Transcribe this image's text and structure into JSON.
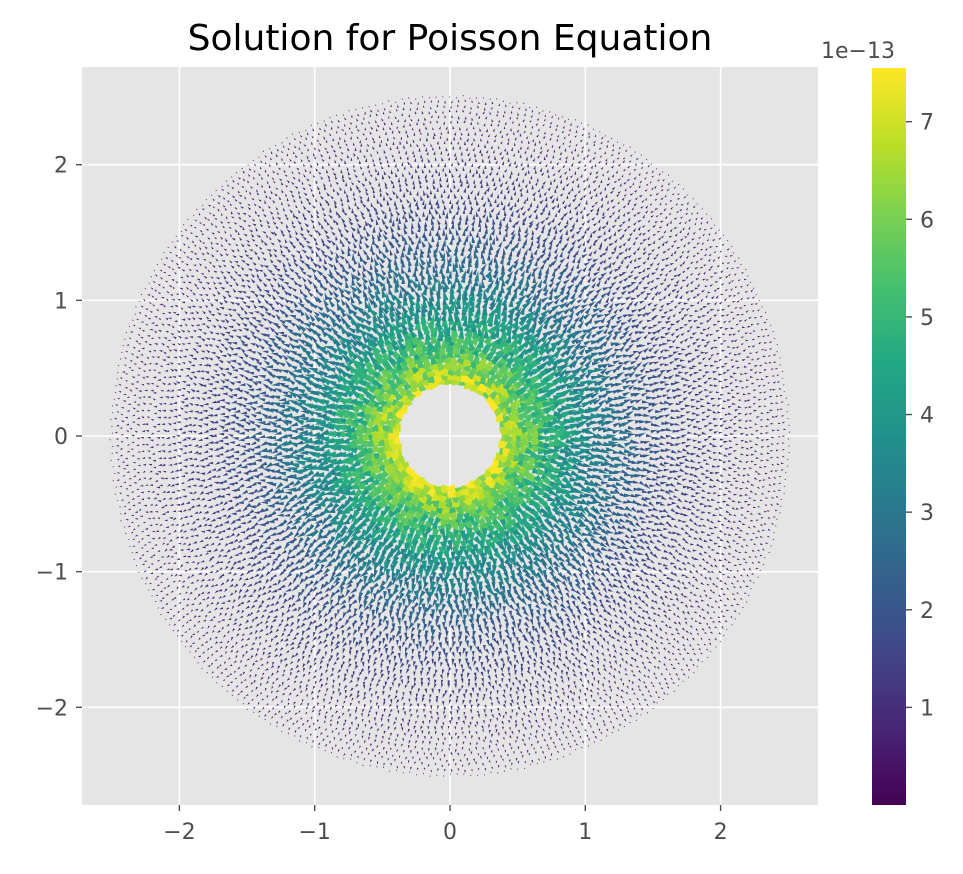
{
  "chart_data": {
    "type": "quiver",
    "title": "Solution for Poisson Equation",
    "xlabel": "",
    "ylabel": "",
    "xlim": [
      -2.72,
      2.72
    ],
    "ylim": [
      -2.72,
      2.72
    ],
    "x_ticks": [
      -2,
      -1,
      0,
      1,
      2
    ],
    "y_ticks": [
      -2,
      -1,
      0,
      1,
      2
    ],
    "x_tick_labels": [
      "−2",
      "−1",
      "0",
      "1",
      "2"
    ],
    "y_tick_labels": [
      "2",
      "1",
      "0",
      "−1",
      "−2"
    ],
    "grid": true,
    "domain": {
      "shape": "annulus",
      "inner_radius": 0.38,
      "outer_radius": 2.5,
      "center": [
        0,
        0
      ]
    },
    "field": {
      "direction": "radial",
      "magnitude_peak": 7.5e-13,
      "magnitude_min": 1e-14,
      "notes_on_distribution": "magnitude highest near inner boundary and decreasing toward outer boundary"
    },
    "colorbar": {
      "colormap": "viridis",
      "range": [
        0.0,
        7.55
      ],
      "ticks": [
        1,
        2,
        3,
        4,
        5,
        6,
        7
      ],
      "tick_labels": [
        "1",
        "2",
        "3",
        "4",
        "5",
        "6",
        "7"
      ],
      "offset_label": "1e−13"
    },
    "colors": {
      "axes_background": "#e5e5e5",
      "grid": "#ffffff",
      "tick_text": "#4d4d4d",
      "title_text": "#000000"
    }
  }
}
